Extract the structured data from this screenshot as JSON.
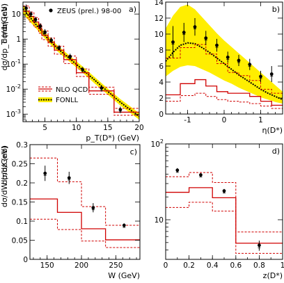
{
  "chart_data": [
    {
      "id": "a",
      "type": "line",
      "panel_label": "a)",
      "xlabel": "p_T(D*) (GeV)",
      "ylabel": "dσ/dp_T (nb/GeV)",
      "log_y": true,
      "xlim": [
        1.5,
        20
      ],
      "ylim": [
        0.0005,
        30
      ],
      "x_ticks": [
        "5",
        "10",
        "15",
        "20"
      ],
      "y_ticks": [
        "10",
        "1",
        "10^-1",
        "10^-2",
        "10^-3"
      ],
      "legend": {
        "placement": "top-right",
        "data": "ZEUS (prel.) 98-00",
        "nlo": "NLO QCD",
        "fonll": "FONLL"
      },
      "data_points": {
        "x": [
          2.0,
          2.75,
          3.5,
          4.25,
          5.0,
          6.0,
          7.25,
          9.0,
          11.0,
          14.0,
          17.0
        ],
        "y": [
          17,
          10,
          6.0,
          3.3,
          1.9,
          0.9,
          0.45,
          0.2,
          0.06,
          0.011,
          0.0015
        ],
        "err_low": [
          11,
          7.5,
          4.6,
          2.6,
          1.5,
          0.75,
          0.37,
          0.16,
          0.048,
          0.008,
          0.0011
        ],
        "err_high": [
          24,
          13,
          7.8,
          4.3,
          2.5,
          1.15,
          0.58,
          0.26,
          0.078,
          0.014,
          0.002
        ]
      },
      "nlo_bins": {
        "edges": [
          1.5,
          2.5,
          3.25,
          4,
          4.5,
          5.5,
          6.5,
          8,
          10,
          12,
          16,
          20
        ],
        "central": [
          13,
          8.0,
          4.8,
          2.6,
          1.4,
          0.75,
          0.36,
          0.15,
          0.045,
          0.0085,
          0.0012
        ],
        "low": [
          7.0,
          4.8,
          3.0,
          1.7,
          0.95,
          0.52,
          0.25,
          0.105,
          0.032,
          0.0062,
          0.0009
        ],
        "high": [
          21,
          12,
          7.2,
          3.9,
          2.1,
          1.1,
          0.52,
          0.21,
          0.064,
          0.012,
          0.0017
        ]
      },
      "fonll": {
        "x": [
          1.5,
          2.5,
          3.5,
          4.5,
          5.5,
          7,
          9,
          11,
          13,
          15,
          17,
          20
        ],
        "central": [
          16,
          8,
          4.0,
          2.0,
          1.0,
          0.42,
          0.16,
          0.06,
          0.022,
          0.008,
          0.003,
          0.0008
        ],
        "low": [
          10,
          5.3,
          2.8,
          1.45,
          0.75,
          0.32,
          0.12,
          0.045,
          0.016,
          0.006,
          0.0022,
          0.0006
        ],
        "high": [
          23,
          11.5,
          5.6,
          2.7,
          1.35,
          0.55,
          0.21,
          0.08,
          0.029,
          0.0105,
          0.004,
          0.0011
        ]
      }
    },
    {
      "id": "b",
      "type": "line",
      "panel_label": "b)",
      "xlabel": "η(D*)",
      "ylabel": "dσ/dη (nb)",
      "xlim": [
        -1.6,
        1.6
      ],
      "ylim": [
        0,
        14
      ],
      "x_ticks": [
        "-1",
        "0",
        "1"
      ],
      "y_ticks": [
        "0",
        "2",
        "4",
        "6",
        "8",
        "10",
        "12",
        "14"
      ],
      "data_points": {
        "x": [
          -1.4,
          -1.1,
          -0.8,
          -0.5,
          -0.2,
          0.1,
          0.4,
          0.7,
          1.0,
          1.3
        ],
        "y": [
          9.0,
          10.2,
          10.9,
          9.5,
          8.6,
          7.1,
          6.7,
          6.2,
          4.7,
          5.0
        ],
        "err_low": [
          7.0,
          9.0,
          9.8,
          8.6,
          7.8,
          6.4,
          6.0,
          5.5,
          4.0,
          4.0
        ],
        "err_high": [
          11.0,
          11.4,
          12.0,
          10.4,
          9.4,
          7.8,
          7.4,
          6.9,
          5.4,
          6.0
        ]
      },
      "nlo_bins": {
        "edges": [
          -1.6,
          -1.2,
          -0.8,
          -0.5,
          -0.2,
          0.1,
          0.4,
          0.7,
          1.0,
          1.3,
          1.6
        ],
        "central": [
          2.4,
          3.8,
          4.3,
          3.5,
          2.8,
          2.6,
          2.6,
          2.2,
          1.6,
          1.1
        ],
        "low": [
          1.6,
          2.3,
          2.6,
          2.2,
          1.8,
          1.6,
          1.5,
          1.3,
          1.0,
          0.7
        ],
        "high": [
          7.0,
          8.3,
          8.7,
          7.5,
          6.3,
          5.2,
          4.8,
          4.2,
          3.1,
          2.6
        ]
      },
      "fonll": {
        "x": [
          -1.6,
          -1.4,
          -1.2,
          -1.0,
          -0.8,
          -0.6,
          -0.4,
          -0.2,
          0.0,
          0.2,
          0.4,
          0.6,
          0.8,
          1.0,
          1.2,
          1.4,
          1.6
        ],
        "central": [
          6.6,
          7.7,
          8.6,
          8.9,
          8.8,
          8.3,
          7.7,
          7.0,
          6.3,
          5.6,
          4.9,
          4.3,
          3.7,
          3.1,
          2.6,
          2.2,
          1.8
        ],
        "low": [
          4.7,
          5.4,
          5.9,
          6.1,
          6.0,
          5.6,
          5.2,
          4.7,
          4.2,
          3.8,
          3.3,
          2.9,
          2.5,
          2.1,
          1.8,
          1.5,
          1.3
        ],
        "high": [
          10.7,
          12.3,
          13.4,
          13.7,
          13.1,
          12.1,
          11.1,
          10.1,
          9.2,
          8.4,
          7.6,
          6.8,
          6.0,
          5.2,
          4.4,
          3.6,
          2.8
        ]
      }
    },
    {
      "id": "c",
      "type": "line",
      "panel_label": "c)",
      "xlabel": "W (GeV)",
      "ylabel": "dσ/dW (nb/GeV)",
      "xlim": [
        125,
        285
      ],
      "ylim": [
        0,
        0.3
      ],
      "x_ticks": [
        "150",
        "200",
        "250"
      ],
      "y_ticks": [
        "0",
        "0.05",
        "0.1",
        "0.15",
        "0.2",
        "0.25",
        "0.3"
      ],
      "data_points": {
        "x": [
          147,
          182,
          217,
          262
        ],
        "y": [
          0.225,
          0.213,
          0.135,
          0.089
        ],
        "err_low": [
          0.205,
          0.197,
          0.123,
          0.084
        ],
        "err_high": [
          0.245,
          0.229,
          0.147,
          0.094
        ]
      },
      "nlo_bins": {
        "edges": [
          125,
          165,
          200,
          235,
          285
        ],
        "central": [
          0.158,
          0.123,
          0.08,
          0.051
        ],
        "low": [
          0.105,
          0.078,
          0.048,
          0.031
        ],
        "high": [
          0.265,
          0.203,
          0.138,
          0.089
        ]
      }
    },
    {
      "id": "d",
      "type": "line",
      "panel_label": "d)",
      "xlabel": "z(D*)",
      "ylabel": "dσ/dz (nb)",
      "log_y": true,
      "xlim": [
        0,
        1
      ],
      "ylim": [
        3,
        100
      ],
      "x_ticks": [
        "0",
        "0.2",
        "0.4",
        "0.6",
        "0.8",
        "1"
      ],
      "y_ticks": [
        "10",
        "10^2"
      ],
      "data_points": {
        "x": [
          0.1,
          0.3,
          0.5,
          0.8
        ],
        "y": [
          45,
          39,
          24,
          4.6
        ],
        "err_low": [
          42,
          37,
          22.5,
          3.9
        ],
        "err_high": [
          48,
          41,
          25.5,
          5.3
        ]
      },
      "nlo_bins": {
        "edges": [
          0,
          0.2,
          0.4,
          0.6,
          1.0
        ],
        "central": [
          23,
          26.5,
          19.5,
          4.9
        ],
        "low": [
          14.5,
          17.0,
          13.0,
          3.6
        ],
        "high": [
          37,
          42,
          31,
          6.9
        ]
      }
    }
  ]
}
